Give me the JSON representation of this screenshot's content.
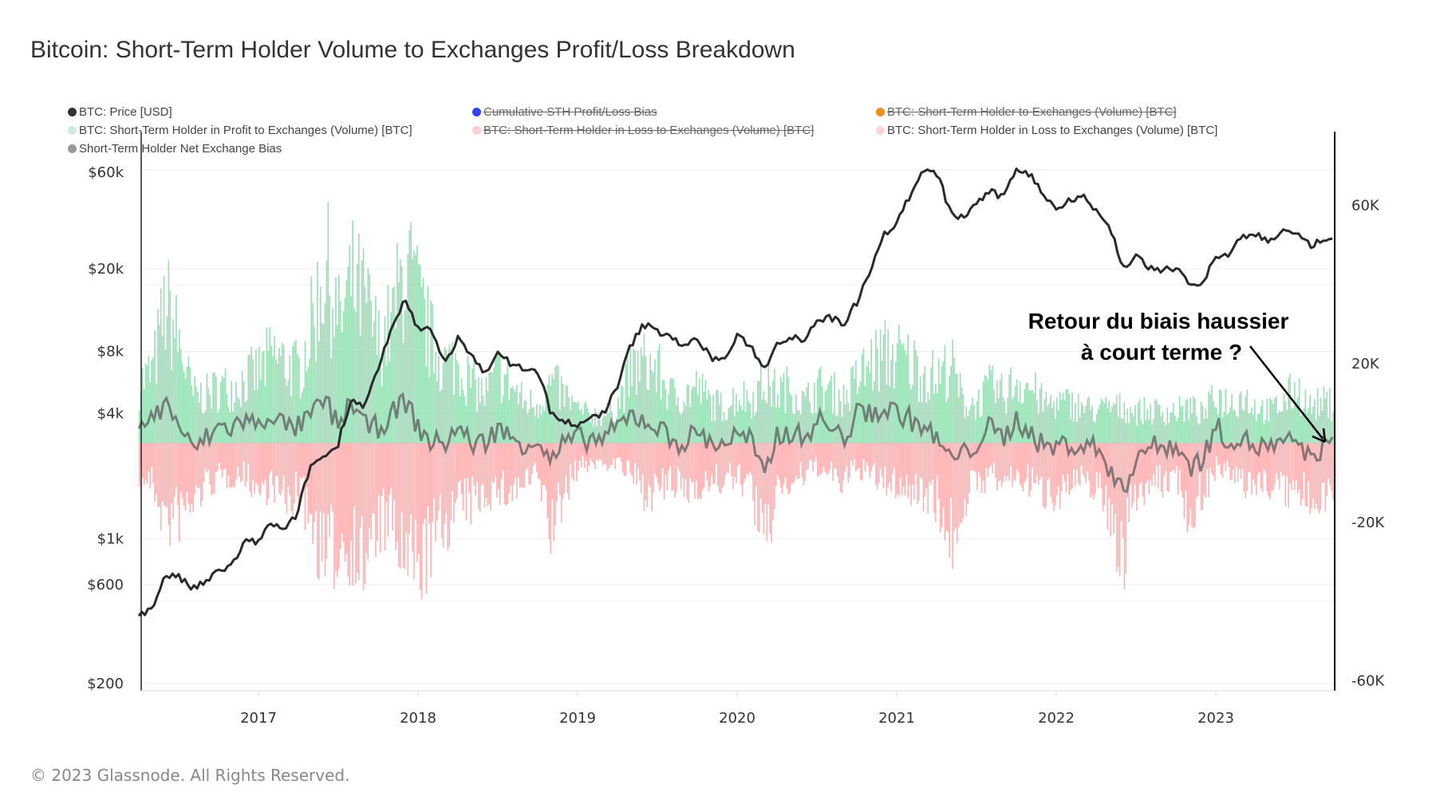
{
  "title": "Bitcoin: Short-Term Holder Volume to Exchanges Profit/Loss Breakdown",
  "footer": "© 2023 Glassnode. All Rights Reserved.",
  "legend": [
    {
      "label": "BTC: Price [USD]",
      "color": "#333333",
      "active": true
    },
    {
      "label": "Cumulative STH Profit/Loss Bias",
      "color": "#3344ee",
      "active": false
    },
    {
      "label": "BTC: Short-Term Holder to Exchanges (Volume) [BTC]",
      "color": "#f08c1e",
      "active": false
    },
    {
      "label": "BTC: Short-Term Holder in Profit to Exchanges (Volume) [BTC]",
      "color": "#cdeedd",
      "active": true
    },
    {
      "label": "BTC: Short-Term Holder in Loss to Exchanges (Volume) [BTC]",
      "color": "#f9d0d0",
      "active": false
    },
    {
      "label": "BTC: Short-Term Holder in Loss to Exchanges (Volume) [BTC]",
      "color": "#fcd4d4",
      "active": true
    },
    {
      "label": "Short-Term Holder Net Exchange Bias",
      "color": "#999999",
      "active": true
    }
  ],
  "annotation": {
    "line1": "Retour du biais haussier",
    "line2": "à court terme ?"
  },
  "chart_data": {
    "type": "line",
    "x_start": "2016-04",
    "x_end": "2023-09",
    "x_frequency": "monthly",
    "x_ticks": [
      "2017",
      "2018",
      "2019",
      "2020",
      "2021",
      "2022",
      "2023"
    ],
    "y_left": {
      "scale": "log",
      "range": [
        200,
        60000
      ],
      "ticks": [
        "$200",
        "$600",
        "$1k",
        "$4k",
        "$8k",
        "$20k",
        "$60k"
      ],
      "tick_values": [
        200,
        600,
        1000,
        4000,
        8000,
        20000,
        60000
      ]
    },
    "y_right": {
      "scale": "linear",
      "range": [
        -60000,
        75000
      ],
      "ticks": [
        "-60K",
        "-20K",
        "20K",
        "60K"
      ],
      "tick_values": [
        -60000,
        -20000,
        20000,
        60000
      ]
    },
    "colors": {
      "price": "#2a2a2a",
      "profit": "#7fd6a3",
      "loss": "#ff9c9c",
      "net": "#5e5e5e"
    },
    "series": [
      {
        "name": "BTC: Price [USD]",
        "axis": "left",
        "values": [
          440,
          450,
          670,
          650,
          575,
          610,
          700,
          740,
          960,
          970,
          1190,
          1080,
          1350,
          2300,
          2480,
          2870,
          4700,
          4340,
          6450,
          9950,
          14000,
          10200,
          10300,
          6900,
          9200,
          7500,
          6400,
          7700,
          7000,
          6600,
          6300,
          4000,
          3700,
          3450,
          3800,
          4100,
          5300,
          8500,
          10800,
          10000,
          9600,
          8300,
          9200,
          7500,
          7200,
          9350,
          8600,
          6400,
          8800,
          9450,
          9150,
          11300,
          11650,
          10800,
          13800,
          19700,
          29000,
          33100,
          45100,
          58800,
          57700,
          37300,
          35000,
          41500,
          47100,
          43800,
          61300,
          57000,
          46300,
          38500,
          43200,
          45500,
          37700,
          31800,
          19900,
          23300,
          20000,
          19400,
          20500,
          17200,
          16500,
          23100,
          23100,
          28500,
          29300,
          27200,
          30500,
          29200,
          26000,
          27000
        ]
      },
      {
        "name": "BTC: Short-Term Holder in Profit to Exchanges (Volume) [BTC]",
        "axis": "right",
        "values": [
          15000,
          18000,
          35000,
          25000,
          12000,
          12000,
          14000,
          14000,
          16000,
          18000,
          22000,
          20000,
          18000,
          30000,
          45000,
          30000,
          40000,
          35000,
          25000,
          30000,
          45000,
          35000,
          25000,
          20000,
          20000,
          15000,
          12000,
          18000,
          14000,
          10000,
          10000,
          15000,
          12000,
          8000,
          7000,
          7000,
          10000,
          18000,
          20000,
          18000,
          12000,
          12000,
          14000,
          10000,
          9000,
          12000,
          11000,
          15000,
          13000,
          14000,
          10000,
          14000,
          13000,
          11000,
          16000,
          20000,
          22000,
          22000,
          20000,
          18000,
          16000,
          20000,
          10000,
          10000,
          14000,
          12000,
          16000,
          14000,
          10000,
          10000,
          10000,
          9000,
          8000,
          9000,
          9000,
          8000,
          8000,
          8000,
          8000,
          9000,
          7000,
          12000,
          10000,
          12000,
          9000,
          8000,
          10000,
          14000,
          9000,
          10000
        ]
      },
      {
        "name": "BTC: Short-Term Holder in Loss to Exchanges (Volume) [BTC]",
        "axis": "right",
        "values": [
          -8000,
          -10000,
          -20000,
          -18000,
          -15000,
          -10000,
          -9000,
          -8000,
          -8000,
          -12000,
          -10000,
          -15000,
          -12000,
          -20000,
          -30000,
          -25000,
          -25000,
          -30000,
          -20000,
          -20000,
          -30000,
          -30000,
          -25000,
          -20000,
          -15000,
          -15000,
          -12000,
          -12000,
          -12000,
          -10000,
          -8000,
          -22000,
          -12000,
          -6000,
          -5000,
          -5000,
          -5000,
          -8000,
          -12000,
          -12000,
          -10000,
          -12000,
          -10000,
          -10000,
          -9000,
          -9000,
          -10000,
          -28000,
          -10000,
          -10000,
          -8000,
          -6000,
          -8000,
          -10000,
          -6000,
          -8000,
          -10000,
          -10000,
          -12000,
          -12000,
          -14000,
          -25000,
          -14000,
          -10000,
          -8000,
          -10000,
          -8000,
          -10000,
          -12000,
          -12000,
          -10000,
          -10000,
          -10000,
          -18000,
          -28000,
          -12000,
          -10000,
          -10000,
          -8000,
          -18000,
          -12000,
          -6000,
          -8000,
          -10000,
          -10000,
          -10000,
          -12000,
          -12000,
          -14000,
          -12000
        ]
      },
      {
        "name": "Short-Term Holder Net Exchange Bias",
        "axis": "right",
        "values": [
          5000,
          6000,
          10000,
          5000,
          -2000,
          1000,
          4000,
          4000,
          6000,
          4000,
          8000,
          4000,
          4000,
          7000,
          11000,
          4000,
          11000,
          4000,
          4000,
          7000,
          11000,
          4000,
          0,
          0,
          4000,
          0,
          0,
          4000,
          1000,
          0,
          1000,
          -5000,
          0,
          1000,
          1000,
          1000,
          4000,
          7000,
          6000,
          4000,
          1000,
          0,
          3000,
          0,
          0,
          2000,
          1000,
          -9000,
          2000,
          3000,
          1000,
          6000,
          4000,
          1000,
          7000,
          8000,
          8000,
          8000,
          6000,
          4000,
          1000,
          -4000,
          -3000,
          0,
          4000,
          1000,
          6000,
          3000,
          -1000,
          -1000,
          0,
          -1000,
          -1000,
          -6000,
          -13000,
          -3000,
          -1000,
          -1000,
          0,
          -6000,
          -4000,
          4000,
          1000,
          1000,
          -1000,
          -1000,
          -1000,
          1000,
          -4000,
          -1000
        ]
      }
    ]
  }
}
